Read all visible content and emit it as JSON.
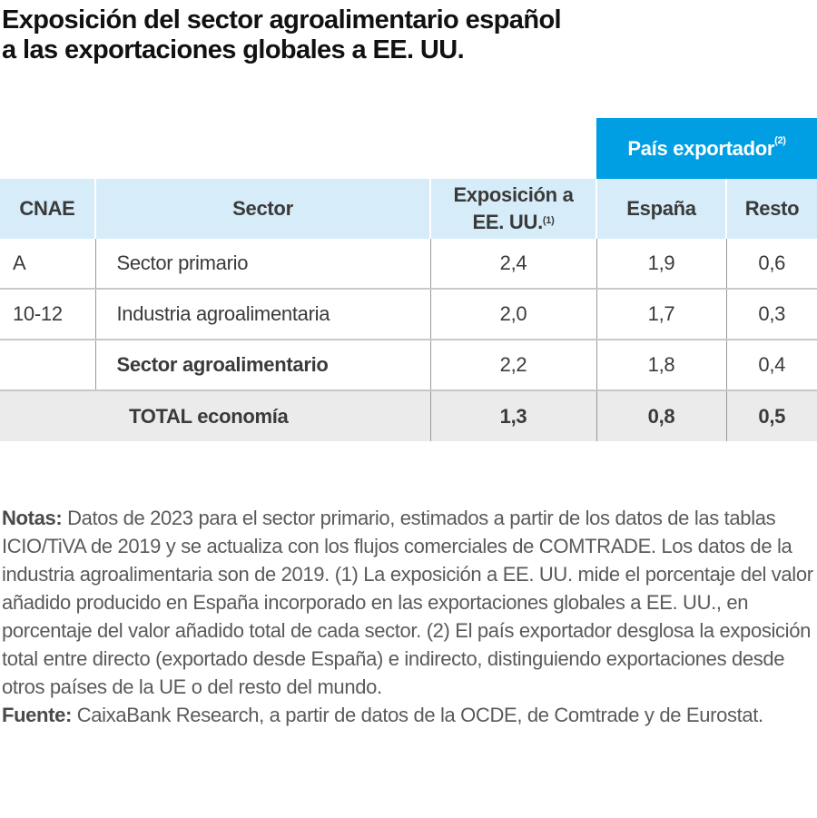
{
  "title": [
    "Exposición del sector agroalimentario español",
    "a las exportaciones globales a EE. UU."
  ],
  "table": {
    "group_header": {
      "label": "País exportador",
      "note": "(2)"
    },
    "columns": [
      {
        "label": "CNAE"
      },
      {
        "label": "Sector"
      },
      {
        "label_line1": "Exposición a",
        "label_line2": "EE. UU.",
        "note": "(1)"
      },
      {
        "label": "España"
      },
      {
        "label": "Resto"
      }
    ],
    "rows": [
      {
        "cnae": "A",
        "sector": "Sector primario",
        "exposicion": "2,4",
        "espana": "1,9",
        "resto": "0,6"
      },
      {
        "cnae": "10-12",
        "sector": "Industria agroalimentaria",
        "exposicion": "2,0",
        "espana": "1,7",
        "resto": "0,3"
      },
      {
        "cnae": "",
        "sector": "Sector agroalimentario",
        "exposicion": "2,2",
        "espana": "1,8",
        "resto": "0,4"
      }
    ],
    "total": {
      "label": "TOTAL economía",
      "exposicion": "1,3",
      "espana": "0,8",
      "resto": "0,5"
    }
  },
  "notes": {
    "notes_label": "Notas:",
    "notes_text": " Datos de 2023 para el sector primario, estimados a partir de los datos de las tablas ICIO/TiVA de 2019 y se actualiza con los flujos comerciales de COMTRADE. Los datos de la industria agroalimentaria son de 2019. (1) La exposición a EE. UU. mide el porcentaje del valor añadido producido en España incorporado en las exportaciones globales a EE. UU., en porcentaje del valor añadido total de cada sector. (2) El país exportador desglosa la exposición total entre directo (exportado desde España) e indirecto, distinguiendo exportaciones desde otros países de la UE o del resto del mundo.",
    "source_label": "Fuente:",
    "source_text": " CaixaBank Research, a partir de datos de la OCDE, de Comtrade y de Eurostat."
  },
  "colors": {
    "band": "#009fe3",
    "header": "#d6ecf9",
    "total_row": "#ebebeb"
  }
}
